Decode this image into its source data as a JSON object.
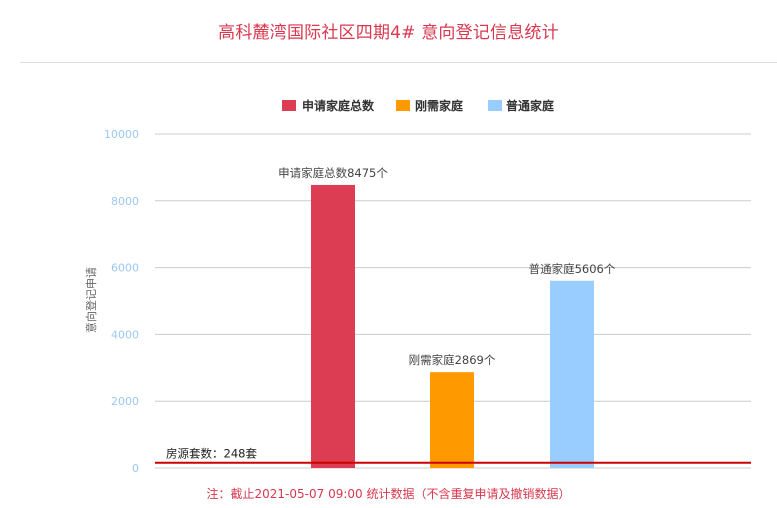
{
  "page": {
    "title": "高科麓湾国际社区四期4# 意向登记信息统计",
    "footnote": "注：截止2021-05-07 09:00 统计数据（不含重复申请及撤销数据）"
  },
  "chart_data": {
    "type": "bar",
    "title": "高科麓湾国际社区四期4# 意向登记信息统计",
    "ylabel": "意向登记申请",
    "xlabel": "",
    "ylim": [
      0,
      10000
    ],
    "yticks": [
      0,
      2000,
      4000,
      6000,
      8000,
      10000
    ],
    "grid": true,
    "legend_position": "top",
    "series": [
      {
        "name": "申请家庭总数",
        "value": 8475,
        "color": "#dc3d52",
        "label": "申请家庭总数8475个"
      },
      {
        "name": "刚需家庭",
        "value": 2869,
        "color": "#ff9900",
        "label": "刚需家庭2869个"
      },
      {
        "name": "普通家庭",
        "value": 5606,
        "color": "#99ccff",
        "label": "普通家庭5606个"
      }
    ],
    "reference_line": {
      "value": 248,
      "label": "房源套数：248套",
      "color": "#cc0000"
    }
  }
}
